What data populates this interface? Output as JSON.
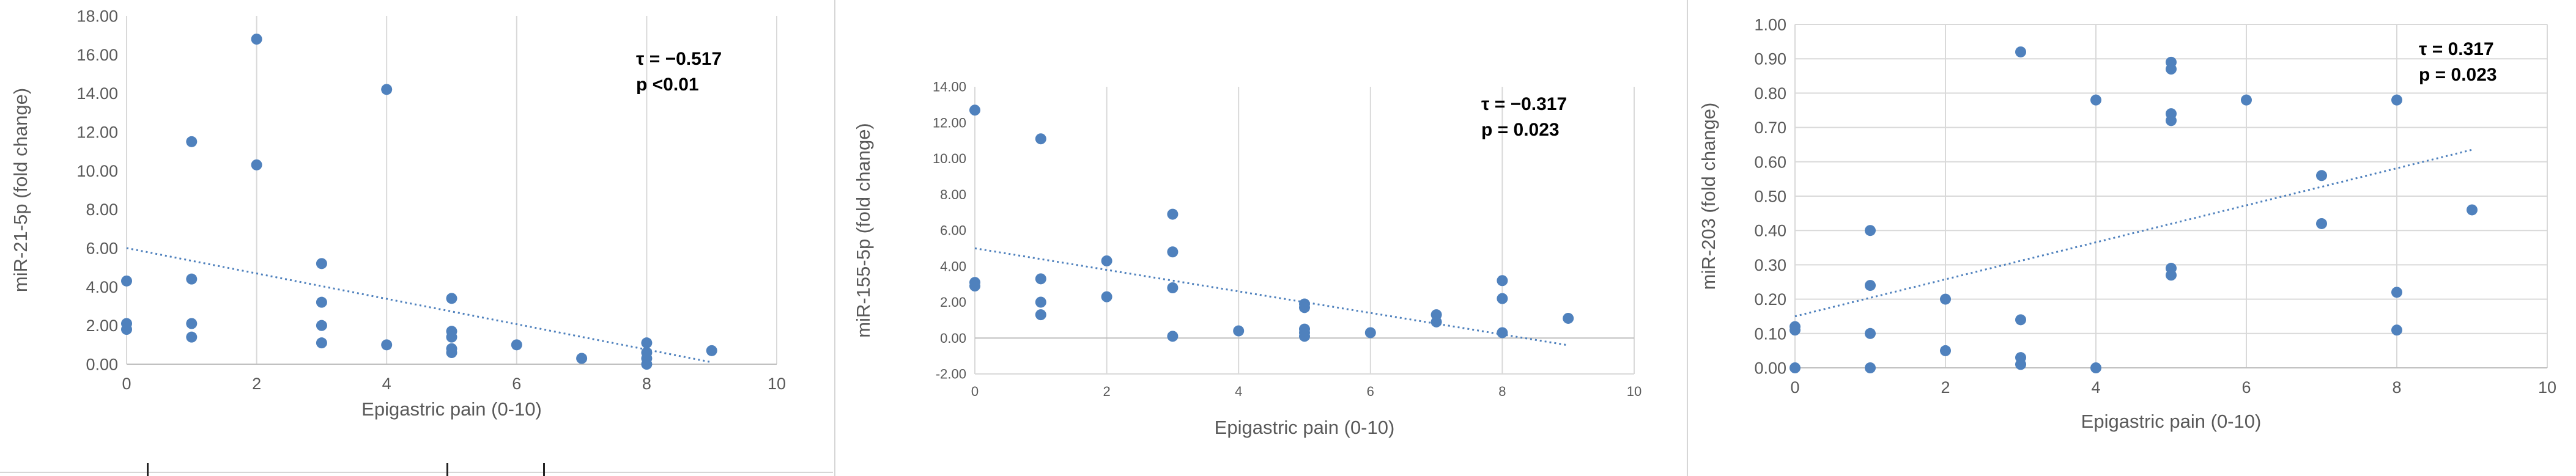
{
  "colors": {
    "point": "#4f81bd",
    "trend": "#4f81bd",
    "grid": "#d9d9d9",
    "text": "#595959",
    "annotation": "#000000"
  },
  "chart_data": [
    {
      "type": "scatter",
      "xlabel": "Epigastric pain (0-10)",
      "ylabel": "miR-21-5p (fold change)",
      "xlim": [
        0,
        10
      ],
      "ylim": [
        0,
        18
      ],
      "xticks": [
        0,
        2,
        4,
        6,
        8,
        10
      ],
      "yticks": [
        0,
        2,
        4,
        6,
        8,
        10,
        12,
        14,
        16,
        18
      ],
      "ytick_labels": [
        "0.00",
        "2.00",
        "4.00",
        "6.00",
        "8.00",
        "10.00",
        "12.00",
        "14.00",
        "16.00",
        "18.00"
      ],
      "grid": "vertical",
      "annotation": [
        "τ = −0.517",
        "p <0.01"
      ],
      "annotation_position": "top-right",
      "trendline": {
        "x": [
          0,
          9
        ],
        "y": [
          6.0,
          0.1
        ]
      },
      "points": [
        [
          0,
          4.3
        ],
        [
          0,
          2.1
        ],
        [
          0,
          1.8
        ],
        [
          1,
          11.5
        ],
        [
          1,
          4.4
        ],
        [
          1,
          2.1
        ],
        [
          1,
          1.4
        ],
        [
          2,
          16.8
        ],
        [
          2,
          10.3
        ],
        [
          3,
          5.2
        ],
        [
          3,
          3.2
        ],
        [
          3,
          2.0
        ],
        [
          3,
          1.1
        ],
        [
          4,
          14.2
        ],
        [
          4,
          1.0
        ],
        [
          5,
          3.4
        ],
        [
          5,
          1.7
        ],
        [
          5,
          1.4
        ],
        [
          5,
          0.8
        ],
        [
          5,
          0.6
        ],
        [
          6,
          1.0
        ],
        [
          7,
          0.3
        ],
        [
          8,
          1.1
        ],
        [
          8,
          0.6
        ],
        [
          8,
          0.3
        ],
        [
          8,
          0.0
        ],
        [
          9,
          0.7
        ]
      ]
    },
    {
      "type": "scatter",
      "xlabel": "Epigastric pain (0-10)",
      "ylabel": "miR-155-5p (fold change)",
      "xlim": [
        0,
        10
      ],
      "ylim": [
        -2,
        14
      ],
      "xticks": [
        0,
        2,
        4,
        6,
        8,
        10
      ],
      "yticks": [
        -2,
        0,
        2,
        4,
        6,
        8,
        10,
        12,
        14
      ],
      "ytick_labels": [
        "-2.00",
        "0.00",
        "2.00",
        "4.00",
        "6.00",
        "8.00",
        "10.00",
        "12.00",
        "14.00"
      ],
      "grid": "vertical",
      "annotation": [
        "τ = −0.317",
        "p = 0.023"
      ],
      "annotation_position": "top-right",
      "trendline": {
        "x": [
          0,
          9
        ],
        "y": [
          5.0,
          -0.4
        ]
      },
      "points": [
        [
          0,
          12.7
        ],
        [
          0,
          3.1
        ],
        [
          0,
          2.9
        ],
        [
          1,
          11.1
        ],
        [
          1,
          3.3
        ],
        [
          1,
          2.0
        ],
        [
          1,
          1.3
        ],
        [
          2,
          4.3
        ],
        [
          2,
          2.3
        ],
        [
          3,
          6.9
        ],
        [
          3,
          4.8
        ],
        [
          3,
          2.8
        ],
        [
          3,
          0.1
        ],
        [
          4,
          0.4
        ],
        [
          5,
          1.9
        ],
        [
          5,
          1.7
        ],
        [
          5,
          0.5
        ],
        [
          5,
          0.3
        ],
        [
          5,
          0.1
        ],
        [
          6,
          0.3
        ],
        [
          7,
          1.3
        ],
        [
          7,
          0.9
        ],
        [
          8,
          3.2
        ],
        [
          8,
          2.2
        ],
        [
          8,
          0.3
        ],
        [
          9,
          1.1
        ]
      ]
    },
    {
      "type": "scatter",
      "xlabel": "Epigastric pain (0-10)",
      "ylabel": "miR-203 (fold change)",
      "xlim": [
        0,
        10
      ],
      "ylim": [
        0,
        1.0
      ],
      "xticks": [
        0,
        2,
        4,
        6,
        8,
        10
      ],
      "yticks": [
        0,
        0.1,
        0.2,
        0.3,
        0.4,
        0.5,
        0.6,
        0.7,
        0.8,
        0.9,
        1.0
      ],
      "ytick_labels": [
        "0.00",
        "0.10",
        "0.20",
        "0.30",
        "0.40",
        "0.50",
        "0.60",
        "0.70",
        "0.80",
        "0.90",
        "1.00"
      ],
      "grid": "both",
      "annotation": [
        "τ = 0.317",
        "p = 0.023"
      ],
      "annotation_position": "top-right",
      "trendline": {
        "x": [
          0,
          9
        ],
        "y": [
          0.15,
          0.635
        ]
      },
      "points": [
        [
          0,
          0.12
        ],
        [
          0,
          0.11
        ],
        [
          0,
          0.0
        ],
        [
          1,
          0.4
        ],
        [
          1,
          0.24
        ],
        [
          1,
          0.1
        ],
        [
          1,
          0.0
        ],
        [
          2,
          0.2
        ],
        [
          2,
          0.05
        ],
        [
          3,
          0.92
        ],
        [
          3,
          0.14
        ],
        [
          3,
          0.03
        ],
        [
          3,
          0.01
        ],
        [
          4,
          0.78
        ],
        [
          4,
          0.0
        ],
        [
          5,
          0.89
        ],
        [
          5,
          0.87
        ],
        [
          5,
          0.74
        ],
        [
          5,
          0.72
        ],
        [
          5,
          0.29
        ],
        [
          5,
          0.27
        ],
        [
          6,
          0.78
        ],
        [
          7,
          0.56
        ],
        [
          7,
          0.42
        ],
        [
          8,
          0.78
        ],
        [
          8,
          0.22
        ],
        [
          8,
          0.11
        ],
        [
          9,
          0.46
        ]
      ]
    }
  ]
}
